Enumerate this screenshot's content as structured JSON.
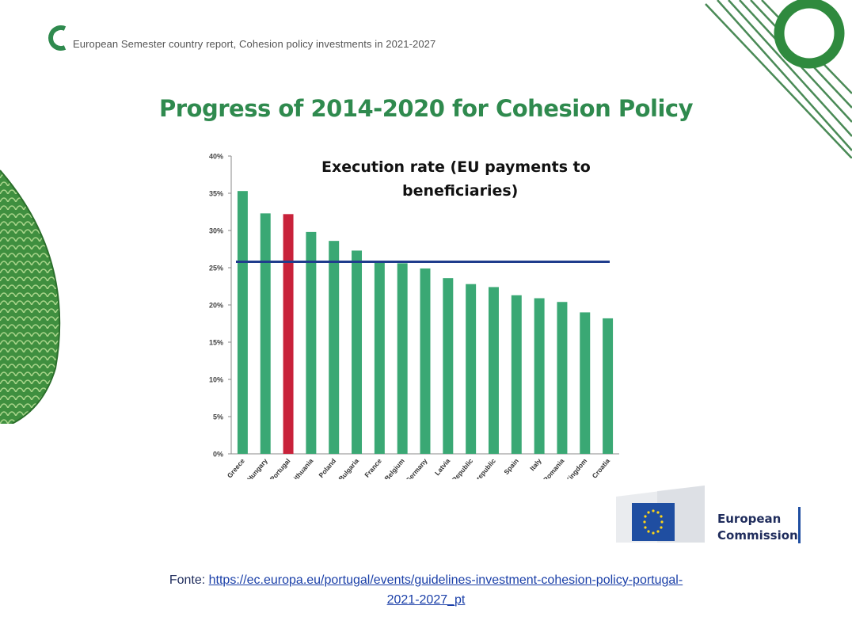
{
  "header": {
    "subtitle": "European Semester country report, Cohesion policy investments in 2021-2027"
  },
  "slide": {
    "title": "Progress of 2014-2020 for Cohesion Policy"
  },
  "chart_data": {
    "type": "bar",
    "title_line1": "Execution rate (EU payments to",
    "title_line2": "beneficiaries)",
    "categories": [
      "Greece",
      "Hungary",
      "Portugal",
      "Lithuania",
      "Poland",
      "Bulgaria",
      "France",
      "Belgium",
      "Germany",
      "Latvia",
      "Czech Republic",
      "Slovak republic",
      "Spain",
      "Italy",
      "Romania",
      "United Kingdom",
      "Croatia"
    ],
    "values": [
      35.3,
      32.3,
      32.2,
      29.8,
      28.6,
      27.3,
      25.9,
      25.6,
      24.9,
      23.6,
      22.8,
      22.4,
      21.3,
      20.9,
      20.4,
      19.0,
      18.2
    ],
    "highlight": "Portugal",
    "reference_line": 25.8,
    "ylim": [
      0,
      40
    ],
    "yticks": [
      0,
      5,
      10,
      15,
      20,
      25,
      30,
      35,
      40
    ],
    "ytick_labels": [
      "0%",
      "5%",
      "10%",
      "15%",
      "20%",
      "25%",
      "30%",
      "35%",
      "40%"
    ],
    "colors": {
      "bar": "#3aa874",
      "highlight": "#c8223a",
      "reference": "#1f3c8c"
    }
  },
  "logo": {
    "line1": "European",
    "line2": "Commission"
  },
  "footer": {
    "prefix": "Fonte: ",
    "link_line1": "https://ec.europa.eu/portugal/events/guidelines-investment-cohesion-policy-portugal-",
    "link_line2": "2021-2027_pt"
  }
}
